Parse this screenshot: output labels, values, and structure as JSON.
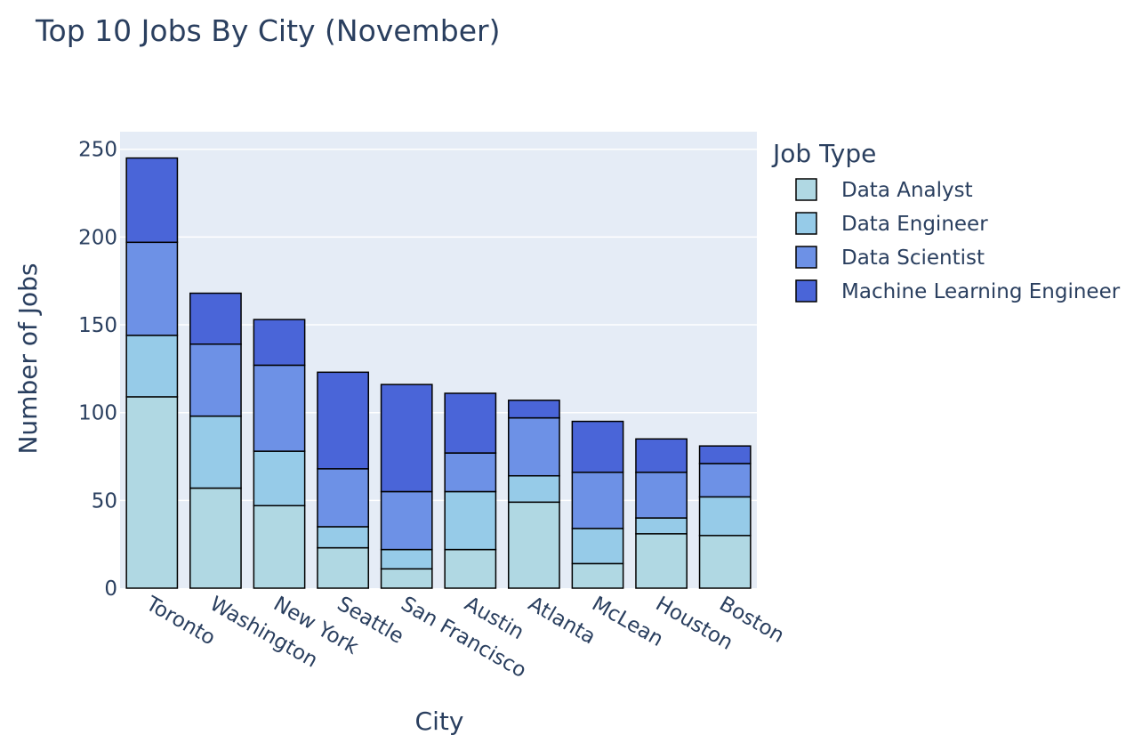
{
  "chart_data": {
    "type": "bar",
    "stacked": true,
    "title": "Top 10 Jobs By City (November)",
    "xlabel": "City",
    "ylabel": "Number of Jobs",
    "ylim": [
      0,
      260
    ],
    "yticks": [
      0,
      50,
      100,
      150,
      200,
      250
    ],
    "grid": true,
    "legend_title": "Job Type",
    "legend_position": "right",
    "categories": [
      "Toronto",
      "Washington",
      "New York",
      "Seattle",
      "San Francisco",
      "Austin",
      "Atlanta",
      "McLean",
      "Houston",
      "Boston"
    ],
    "series": [
      {
        "name": "Data Analyst",
        "color": "#b0d8e3",
        "values": [
          109,
          57,
          47,
          23,
          11,
          22,
          49,
          14,
          31,
          30
        ]
      },
      {
        "name": "Data Engineer",
        "color": "#96cbe8",
        "values": [
          35,
          41,
          31,
          12,
          11,
          33,
          15,
          20,
          9,
          22
        ]
      },
      {
        "name": "Data Scientist",
        "color": "#6d91e6",
        "values": [
          53,
          41,
          49,
          33,
          33,
          22,
          33,
          32,
          26,
          19
        ]
      },
      {
        "name": "Machine Learning Engineer",
        "color": "#4a65d8",
        "values": [
          48,
          29,
          26,
          55,
          61,
          34,
          10,
          29,
          19,
          10
        ]
      }
    ]
  }
}
